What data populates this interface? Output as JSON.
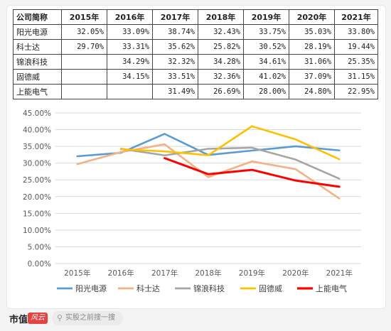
{
  "table": {
    "corner": "公司简称",
    "years": [
      "2015年",
      "2016年",
      "2017年",
      "2018年",
      "2019年",
      "2020年",
      "2021年"
    ],
    "rows": [
      {
        "name": "阳光电源",
        "values": [
          "32.05%",
          "33.09%",
          "38.74%",
          "32.43%",
          "33.75%",
          "35.03%",
          "33.80%"
        ]
      },
      {
        "name": "科士达",
        "values": [
          "29.70%",
          "33.31%",
          "35.62%",
          "25.82%",
          "30.52%",
          "28.19%",
          "19.44%"
        ]
      },
      {
        "name": "锦浪科技",
        "values": [
          "",
          "34.29%",
          "32.32%",
          "34.28%",
          "34.61%",
          "31.06%",
          "25.35%"
        ]
      },
      {
        "name": "固德威",
        "values": [
          "",
          "34.15%",
          "33.51%",
          "32.36%",
          "41.02%",
          "37.09%",
          "31.15%"
        ]
      },
      {
        "name": "上能电气",
        "values": [
          "",
          "",
          "31.49%",
          "26.69%",
          "28.00%",
          "24.80%",
          "22.95%"
        ]
      }
    ]
  },
  "chart_data": {
    "type": "line",
    "x": [
      "2015年",
      "2016年",
      "2017年",
      "2018年",
      "2019年",
      "2020年",
      "2021年"
    ],
    "ylim": [
      0,
      45
    ],
    "yticks": [
      "0.00%",
      "5.00%",
      "10.00%",
      "15.00%",
      "20.00%",
      "25.00%",
      "30.00%",
      "35.00%",
      "40.00%",
      "45.00%"
    ],
    "grid": true,
    "legend_position": "bottom",
    "series": [
      {
        "name": "阳光电源",
        "color": "#5b9bd5",
        "values": [
          32.05,
          33.09,
          38.74,
          32.43,
          33.75,
          35.03,
          33.8
        ]
      },
      {
        "name": "科士达",
        "color": "#f4b183",
        "values": [
          29.7,
          33.31,
          35.62,
          25.82,
          30.52,
          28.19,
          19.44
        ]
      },
      {
        "name": "锦浪科技",
        "color": "#a5a5a5",
        "values": [
          null,
          34.29,
          32.32,
          34.28,
          34.61,
          31.06,
          25.35
        ]
      },
      {
        "name": "固德威",
        "color": "#ffc000",
        "values": [
          null,
          34.15,
          33.51,
          32.36,
          41.02,
          37.09,
          31.15
        ]
      },
      {
        "name": "上能电气",
        "color": "#ff0000",
        "values": [
          null,
          null,
          31.49,
          26.69,
          28.0,
          24.8,
          22.95
        ]
      }
    ]
  },
  "footer": {
    "logo_text": "市值",
    "logo_badge": "风云",
    "search_icon": "search-icon",
    "search_placeholder": "实股之前搜一搜"
  }
}
